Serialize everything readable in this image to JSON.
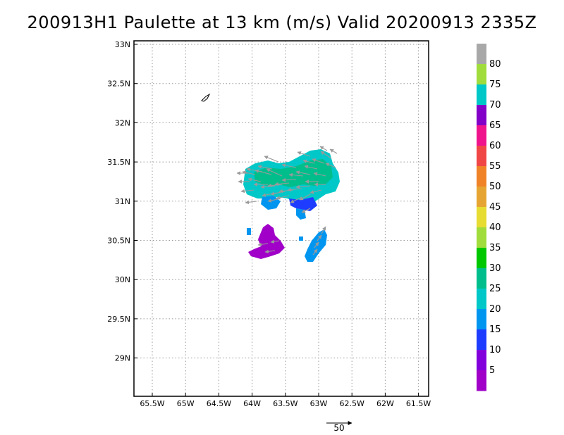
{
  "title": "200913H1 Paulette at 13 km (m/s) Valid 20200913 2335Z",
  "map": {
    "lat_ticks": [
      "33N",
      "32.5N",
      "32N",
      "31.5N",
      "31N",
      "30.5N",
      "30N",
      "29.5N",
      "29N"
    ],
    "lon_ticks": [
      "65.5W",
      "65W",
      "64.5W",
      "64W",
      "63.5W",
      "63W",
      "62.5W",
      "62W",
      "61.5W"
    ],
    "grid": "dotted",
    "reference_vector_label": "50"
  },
  "colorbar": {
    "labels": [
      "80",
      "75",
      "70",
      "65",
      "60",
      "55",
      "50",
      "45",
      "40",
      "35",
      "30",
      "25",
      "20",
      "15",
      "10",
      "5"
    ],
    "colors_top_to_bottom": [
      "#a8a8a8",
      "#a0dc3c",
      "#00c8c8",
      "#8200c8",
      "#f0148c",
      "#f04646",
      "#f08228",
      "#e6a532",
      "#e6dc32",
      "#a0dc3c",
      "#00c800",
      "#00be8c",
      "#00c8c8",
      "#0096f0",
      "#1e3cff",
      "#8200dc",
      "#a000c8"
    ]
  },
  "wind_field": {
    "quantity": "wind speed at 13 km",
    "units": "m/s"
  }
}
